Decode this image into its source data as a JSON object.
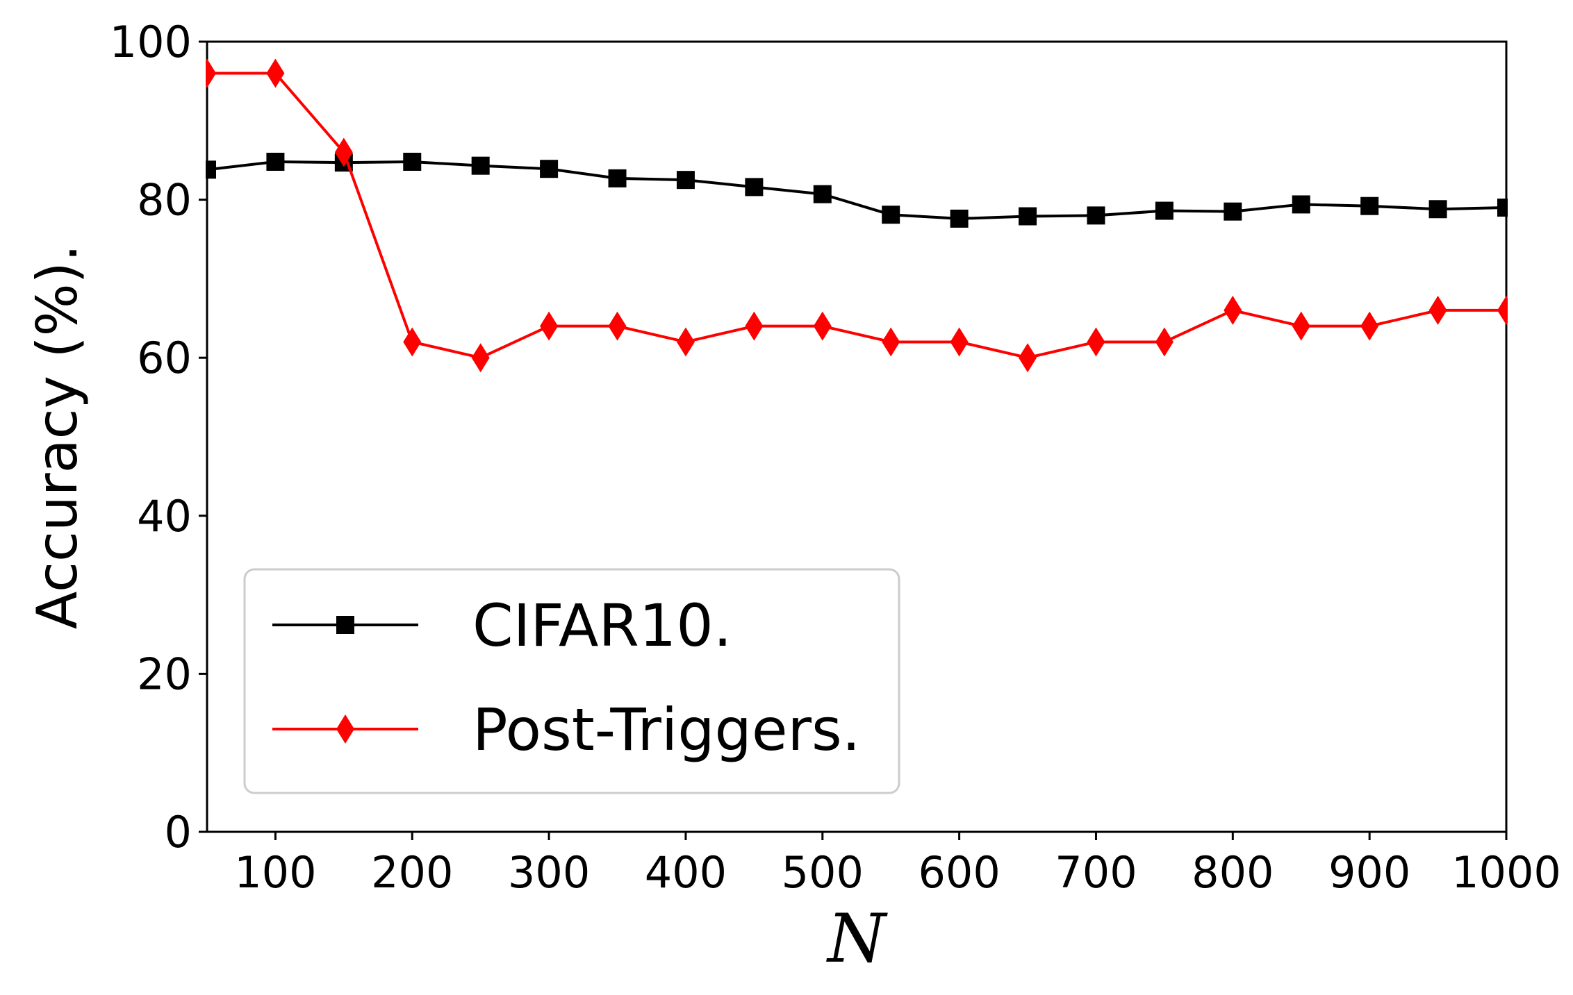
{
  "chart_data": {
    "type": "line",
    "title": "",
    "xlabel": "N",
    "ylabel": "Accuracy (%).",
    "xlim": [
      50,
      1000
    ],
    "ylim": [
      0,
      100
    ],
    "xticks": [
      100,
      200,
      300,
      400,
      500,
      600,
      700,
      800,
      900,
      1000
    ],
    "yticks": [
      0,
      20,
      40,
      60,
      80,
      100
    ],
    "x": [
      50,
      100,
      150,
      200,
      250,
      300,
      350,
      400,
      450,
      500,
      550,
      600,
      650,
      700,
      750,
      800,
      850,
      900,
      950,
      1000
    ],
    "series": [
      {
        "name": "CIFAR10.",
        "color": "#000000",
        "marker": "square",
        "values": [
          83.8,
          84.8,
          84.7,
          84.8,
          84.3,
          83.9,
          82.7,
          82.5,
          81.6,
          80.7,
          78.1,
          77.6,
          77.9,
          78.0,
          78.6,
          78.5,
          79.4,
          79.2,
          78.8,
          79.0
        ]
      },
      {
        "name": "Post-Triggers.",
        "color": "#ff0000",
        "marker": "diamond",
        "values": [
          96,
          96,
          86,
          62,
          60,
          64,
          64,
          62,
          64,
          64,
          62,
          62,
          60,
          62,
          62,
          66,
          64,
          64,
          66,
          66
        ]
      }
    ],
    "grid": false,
    "legend": "lower-left"
  }
}
